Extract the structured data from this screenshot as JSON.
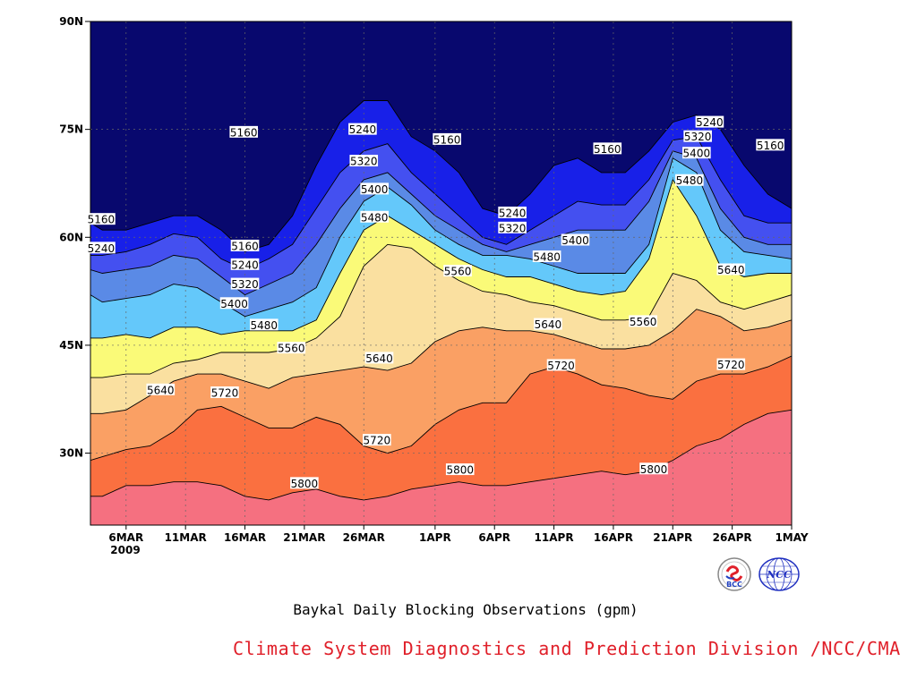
{
  "chart_data": {
    "type": "heatmap",
    "subtype": "filled-contour",
    "caption": "Baykal Daily Blocking Observations (gpm)",
    "x_tick_labels": [
      "6MAR",
      "11MAR",
      "16MAR",
      "21MAR",
      "26MAR",
      "1APR",
      "6APR",
      "11APR",
      "16APR",
      "21APR",
      "26APR",
      "1MAY"
    ],
    "x_year_label": "2009",
    "x_tick_days": [
      6,
      11,
      16,
      21,
      26,
      32,
      37,
      42,
      47,
      52,
      57,
      62
    ],
    "x_day_range": [
      3,
      62
    ],
    "y_tick_labels": [
      "30N",
      "45N",
      "60N",
      "75N",
      "90N"
    ],
    "y_ticks": [
      30,
      45,
      60,
      75,
      90
    ],
    "ylim": [
      20,
      90
    ],
    "grid": true,
    "contour_levels": [
      5160,
      5240,
      5320,
      5400,
      5480,
      5560,
      5640,
      5720,
      5800
    ],
    "level_colors": [
      "#08086e",
      "#1820e8",
      "#4450f0",
      "#5a8ae6",
      "#64c8fa",
      "#fafa78",
      "#fae0a0",
      "#faa064",
      "#fa7040",
      "#f57080"
    ],
    "x_days": [
      3,
      4,
      6,
      8,
      10,
      12,
      14,
      16,
      18,
      20,
      22,
      24,
      26,
      28,
      30,
      32,
      34,
      36,
      38,
      40,
      42,
      44,
      46,
      48,
      50,
      52,
      54,
      56,
      58,
      60,
      62
    ],
    "isolines": [
      {
        "value": 5800,
        "lat": [
          24,
          24,
          25.5,
          25.5,
          26,
          26,
          25.5,
          24,
          23.5,
          24.5,
          25,
          24,
          23.5,
          24,
          25,
          25.5,
          26,
          25.5,
          25.5,
          26,
          26.5,
          27,
          27.5,
          27,
          27.5,
          29,
          31,
          32,
          34,
          35.5,
          36
        ]
      },
      {
        "value": 5720,
        "lat": [
          29,
          29.5,
          30.5,
          31,
          33,
          36,
          36.5,
          35,
          33.5,
          33.5,
          35,
          34,
          31,
          30,
          31,
          34,
          36,
          37,
          37,
          41,
          42,
          41,
          39.5,
          39,
          38,
          37.5,
          40,
          41,
          41,
          42,
          43.5
        ]
      },
      {
        "value": 5640,
        "lat": [
          35.5,
          35.5,
          36,
          38,
          40,
          41,
          41,
          40,
          39,
          40.5,
          41,
          41.5,
          42,
          41.5,
          42.5,
          45.5,
          47,
          47.5,
          47,
          47,
          46.5,
          45.5,
          44.5,
          44.5,
          45,
          47,
          50,
          49,
          47,
          47.5,
          48.5
        ]
      },
      {
        "value": 5560,
        "lat": [
          40.5,
          40.5,
          41,
          41,
          42.5,
          43,
          44,
          44,
          44,
          44.5,
          46,
          49,
          56,
          59,
          58.5,
          56,
          54,
          52.5,
          52,
          51,
          50.5,
          49.5,
          48.5,
          48.5,
          49,
          55,
          54,
          51,
          50,
          51,
          52
        ]
      },
      {
        "value": 5480,
        "lat": [
          46,
          46,
          46.5,
          46,
          47.5,
          47.5,
          46.5,
          47,
          47,
          47,
          48.5,
          55,
          61,
          63,
          61,
          59,
          57,
          55.5,
          54.5,
          54.5,
          53.5,
          52.5,
          52,
          52.5,
          57,
          68,
          63,
          56,
          54.5,
          55,
          55
        ]
      },
      {
        "value": 5400,
        "lat": [
          52,
          51,
          51.5,
          52,
          53.5,
          53,
          51,
          49,
          50,
          51,
          53,
          60,
          65,
          67,
          64.5,
          61,
          59,
          57.5,
          57.5,
          57,
          56,
          55,
          55,
          55,
          59,
          71,
          69,
          61,
          58,
          57.5,
          57
        ]
      },
      {
        "value": 5320,
        "lat": [
          55.5,
          55,
          55.5,
          56,
          57.5,
          57,
          54.5,
          52,
          53.5,
          55,
          59,
          64,
          68,
          69,
          66,
          63,
          61,
          59,
          58,
          59,
          60,
          61,
          61,
          61,
          65,
          72,
          71,
          64,
          60,
          59,
          59
        ]
      },
      {
        "value": 5240,
        "lat": [
          57.5,
          57.5,
          58,
          59,
          60.5,
          60,
          57,
          55.5,
          57,
          59,
          64,
          69,
          72,
          73,
          69,
          66,
          63,
          60,
          59,
          61,
          63,
          65,
          64.5,
          64.5,
          68,
          73.5,
          74,
          68,
          63,
          62,
          62
        ]
      },
      {
        "value": 5160,
        "lat": [
          62,
          61,
          61,
          62,
          63,
          63,
          61,
          58,
          59,
          63,
          70,
          76,
          79,
          79,
          74,
          72,
          69,
          64,
          63,
          66,
          70,
          71,
          69,
          69,
          72,
          76,
          77,
          75,
          70,
          66,
          64
        ]
      }
    ],
    "contour_labels": [
      {
        "text": "5160",
        "x": 3.9,
        "y": 62.5
      },
      {
        "text": "5240",
        "x": 3.9,
        "y": 58.5
      },
      {
        "text": "5160",
        "x": 15.9,
        "y": 74.6
      },
      {
        "text": "5160",
        "x": 16.0,
        "y": 58.8
      },
      {
        "text": "5240",
        "x": 16.0,
        "y": 56.2
      },
      {
        "text": "5320",
        "x": 16.0,
        "y": 53.5
      },
      {
        "text": "5400",
        "x": 15.1,
        "y": 50.8
      },
      {
        "text": "5480",
        "x": 17.6,
        "y": 47.8
      },
      {
        "text": "5560",
        "x": 19.9,
        "y": 44.6
      },
      {
        "text": "5640",
        "x": 8.9,
        "y": 38.8
      },
      {
        "text": "5720",
        "x": 14.3,
        "y": 38.4
      },
      {
        "text": "5800",
        "x": 21.0,
        "y": 25.8
      },
      {
        "text": "5240",
        "x": 25.9,
        "y": 75.0
      },
      {
        "text": "5320",
        "x": 26.0,
        "y": 70.6
      },
      {
        "text": "5400",
        "x": 26.9,
        "y": 66.7
      },
      {
        "text": "5480",
        "x": 26.9,
        "y": 62.8
      },
      {
        "text": "5640",
        "x": 27.3,
        "y": 43.2
      },
      {
        "text": "5720",
        "x": 27.1,
        "y": 31.8
      },
      {
        "text": "5160",
        "x": 33.0,
        "y": 73.6
      },
      {
        "text": "5560",
        "x": 33.9,
        "y": 55.3
      },
      {
        "text": "5800",
        "x": 34.1,
        "y": 27.7
      },
      {
        "text": "5240",
        "x": 38.5,
        "y": 63.4
      },
      {
        "text": "5320",
        "x": 38.5,
        "y": 61.3
      },
      {
        "text": "5480",
        "x": 41.4,
        "y": 57.3
      },
      {
        "text": "5400",
        "x": 43.8,
        "y": 59.6
      },
      {
        "text": "5640",
        "x": 41.5,
        "y": 47.9
      },
      {
        "text": "5720",
        "x": 42.6,
        "y": 42.2
      },
      {
        "text": "5160",
        "x": 46.5,
        "y": 72.3
      },
      {
        "text": "5560",
        "x": 49.5,
        "y": 48.3
      },
      {
        "text": "5800",
        "x": 50.4,
        "y": 27.8
      },
      {
        "text": "5240",
        "x": 55.1,
        "y": 76.0
      },
      {
        "text": "5320",
        "x": 54.1,
        "y": 74.0
      },
      {
        "text": "5400",
        "x": 54.0,
        "y": 71.7
      },
      {
        "text": "5480",
        "x": 53.4,
        "y": 67.9
      },
      {
        "text": "5160",
        "x": 60.2,
        "y": 72.8
      },
      {
        "text": "5640",
        "x": 56.9,
        "y": 55.5
      },
      {
        "text": "5720",
        "x": 56.9,
        "y": 42.3
      }
    ]
  },
  "credit": "Climate System Diagnostics and Prediction Division /NCC/CMA",
  "logos": [
    {
      "name": "bcc-logo",
      "text": "BCC",
      "color": "#e0202a"
    },
    {
      "name": "ncc-logo",
      "text": "NCC",
      "color": "#2030c0"
    }
  ]
}
